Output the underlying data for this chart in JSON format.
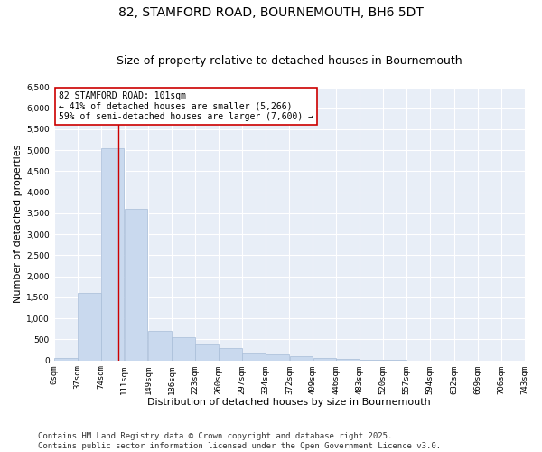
{
  "title": "82, STAMFORD ROAD, BOURNEMOUTH, BH6 5DT",
  "subtitle": "Size of property relative to detached houses in Bournemouth",
  "xlabel": "Distribution of detached houses by size in Bournemouth",
  "ylabel": "Number of detached properties",
  "bar_color": "#c9d9ee",
  "bar_edge_color": "#a8bdd8",
  "bg_color": "#e8eef7",
  "grid_color": "#ffffff",
  "annotation_line_color": "#cc0000",
  "annotation_box_color": "#cc0000",
  "annotation_text": "82 STAMFORD ROAD: 101sqm\n← 41% of detached houses are smaller (5,266)\n59% of semi-detached houses are larger (7,600) →",
  "property_sqm": 101,
  "bin_edges": [
    0,
    37,
    74,
    111,
    149,
    186,
    223,
    260,
    297,
    334,
    372,
    409,
    446,
    483,
    520,
    557,
    594,
    632,
    669,
    706,
    743
  ],
  "bin_labels": [
    "0sqm",
    "37sqm",
    "74sqm",
    "111sqm",
    "149sqm",
    "186sqm",
    "223sqm",
    "260sqm",
    "297sqm",
    "334sqm",
    "372sqm",
    "409sqm",
    "446sqm",
    "483sqm",
    "520sqm",
    "557sqm",
    "594sqm",
    "632sqm",
    "669sqm",
    "706sqm",
    "743sqm"
  ],
  "counts": [
    50,
    1600,
    5050,
    3600,
    700,
    550,
    380,
    300,
    170,
    150,
    100,
    60,
    30,
    10,
    5,
    3,
    2,
    1,
    1,
    0
  ],
  "ylim": [
    0,
    6500
  ],
  "yticks": [
    0,
    500,
    1000,
    1500,
    2000,
    2500,
    3000,
    3500,
    4000,
    4500,
    5000,
    5500,
    6000,
    6500
  ],
  "footer": "Contains HM Land Registry data © Crown copyright and database right 2025.\nContains public sector information licensed under the Open Government Licence v3.0.",
  "title_fontsize": 10,
  "subtitle_fontsize": 9,
  "axis_label_fontsize": 8,
  "tick_fontsize": 6.5,
  "annotation_fontsize": 7,
  "footer_fontsize": 6.5
}
